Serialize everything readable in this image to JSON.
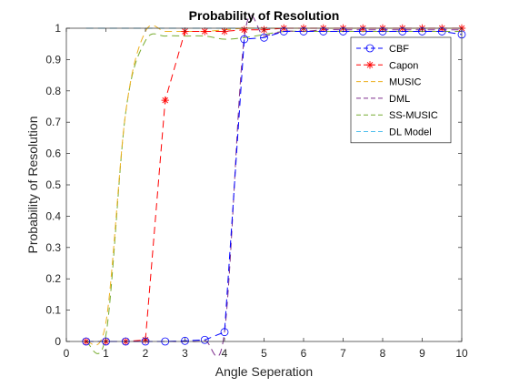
{
  "chart_data": {
    "type": "line",
    "title": "Probability of Resolution",
    "xlabel": "Angle Seperation",
    "ylabel": "Probability of Resolution",
    "xlim": [
      0,
      10
    ],
    "ylim": [
      0,
      1
    ],
    "xticks": [
      "0",
      "1",
      "2",
      "3",
      "4",
      "5",
      "6",
      "7",
      "8",
      "9",
      "10"
    ],
    "yticks": [
      "0",
      "0.1",
      "0.2",
      "0.3",
      "0.4",
      "0.5",
      "0.6",
      "0.7",
      "0.8",
      "0.9",
      "1"
    ],
    "grid": false,
    "legend_position": "top-right",
    "x": [
      0.5,
      1,
      1.5,
      2,
      2.5,
      3,
      3.5,
      4,
      4.5,
      5,
      5.5,
      6,
      6.5,
      7,
      7.5,
      8,
      8.5,
      9,
      9.5,
      10
    ],
    "series": [
      {
        "name": "CBF",
        "color": "#0000ff",
        "line": "dashed",
        "marker": "circle",
        "values": [
          0,
          0,
          0,
          0,
          0,
          0.002,
          0.005,
          0.03,
          0.965,
          0.97,
          0.99,
          0.99,
          0.99,
          0.99,
          0.99,
          0.99,
          0.99,
          0.99,
          0.99,
          0.98
        ]
      },
      {
        "name": "Capon",
        "color": "#ff0000",
        "line": "dashed",
        "marker": "asterisk",
        "values": [
          0,
          0,
          0,
          0.005,
          0.77,
          0.99,
          0.99,
          0.99,
          0.995,
          0.995,
          1,
          1,
          1,
          1,
          1,
          1,
          1,
          1,
          1,
          1
        ]
      },
      {
        "name": "MUSIC",
        "color": "#edb120",
        "line": "dashed",
        "marker": "none",
        "values": [
          0,
          0.06,
          0.73,
          0.99,
          0.99,
          0.99,
          0.99,
          0.995,
          1,
          1,
          1,
          1,
          1,
          1,
          1,
          1,
          1,
          1,
          1,
          1
        ]
      },
      {
        "name": "DML",
        "color": "#7e2f8e",
        "line": "dashed",
        "marker": "none",
        "values": [
          0,
          0,
          0,
          0,
          0,
          0,
          0.003,
          0.03,
          0.97,
          0.975,
          0.99,
          0.99,
          0.995,
          0.995,
          0.995,
          0.995,
          0.995,
          0.995,
          0.995,
          0.995
        ]
      },
      {
        "name": "SS-MUSIC",
        "color": "#77ac30",
        "line": "dashed",
        "marker": "none",
        "values": [
          0,
          0.02,
          0.73,
          0.96,
          0.975,
          0.975,
          0.975,
          0.965,
          0.97,
          0.98,
          0.99,
          0.99,
          0.99,
          0.99,
          0.99,
          0.99,
          0.99,
          0.99,
          0.99,
          0.99
        ]
      },
      {
        "name": "DL Model",
        "color": "#4dbeee",
        "line": "dashed",
        "marker": "none",
        "values": [
          1,
          1,
          1,
          1,
          1,
          1,
          1,
          1,
          1,
          1,
          1,
          1,
          1,
          1,
          1,
          1,
          1,
          1,
          1,
          1
        ]
      }
    ]
  }
}
